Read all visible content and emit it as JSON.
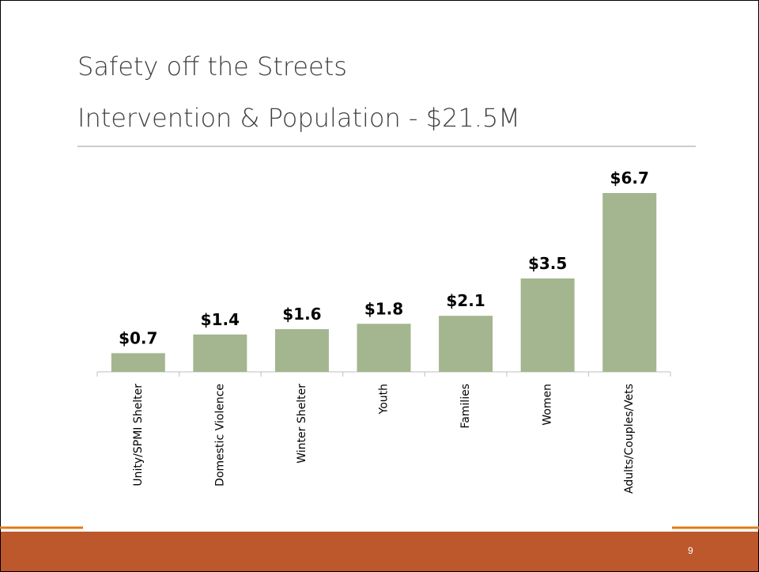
{
  "title": [
    "Safety off the Streets",
    "Intervention & Population - $21.5M"
  ],
  "slide_number": "9",
  "chart_data": {
    "type": "bar",
    "categories": [
      "Unity/SPMI Shelter",
      "Domestic Violence",
      "Winter Shelter",
      "Youth",
      "Families",
      "Women",
      "Adults/Couples/Vets"
    ],
    "values": [
      0.7,
      1.4,
      1.6,
      1.8,
      2.1,
      3.5,
      6.7
    ],
    "value_labels": [
      "$0.7",
      "$1.4",
      "$1.6",
      "$1.8",
      "$2.1",
      "$3.5",
      "$6.7"
    ],
    "color": "#a3b68f"
  }
}
